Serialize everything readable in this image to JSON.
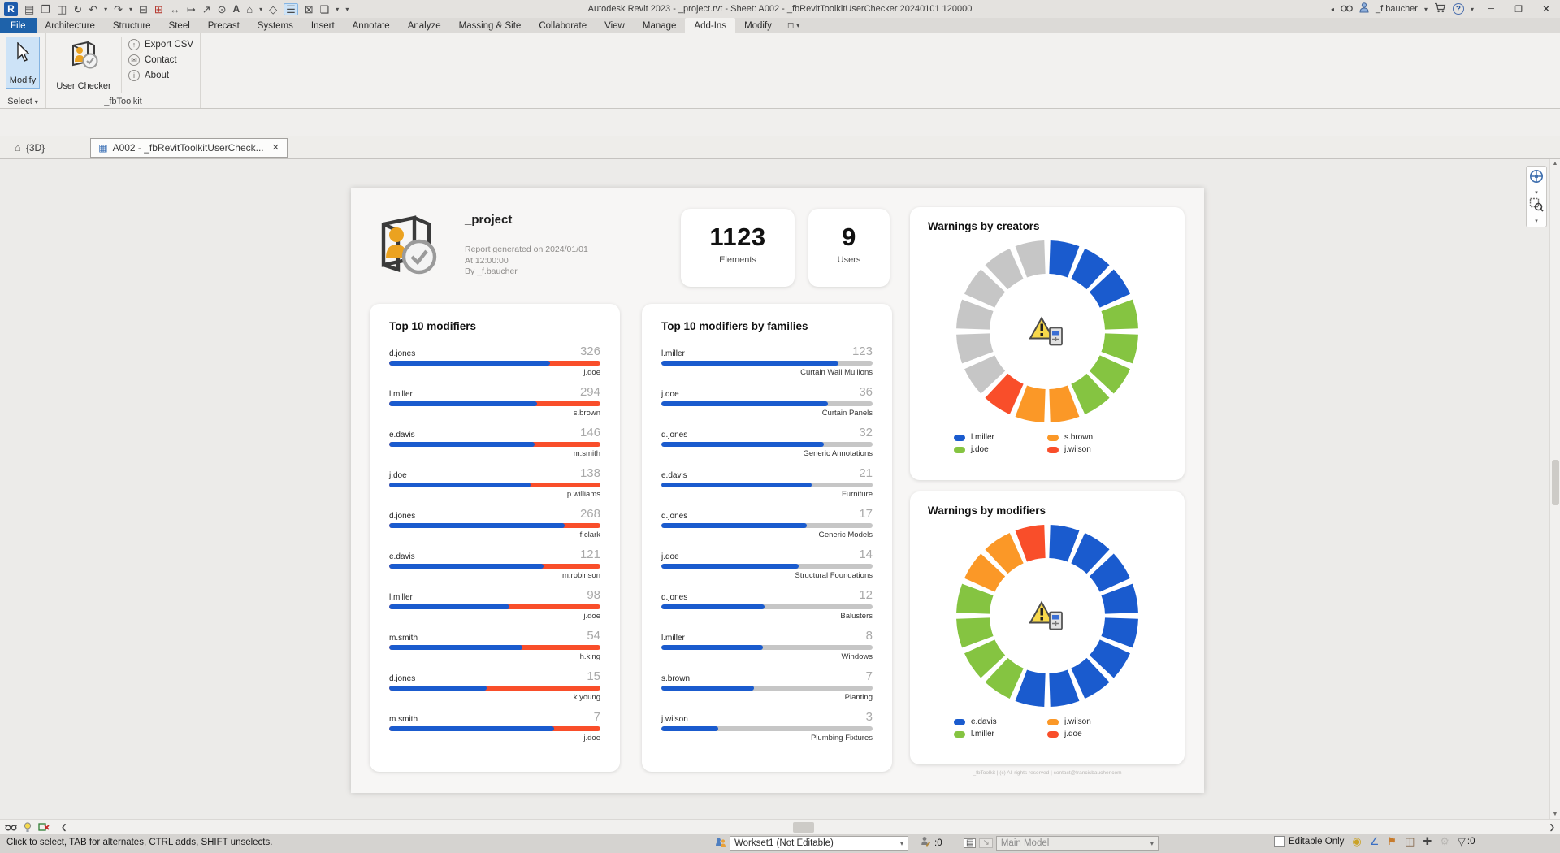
{
  "window": {
    "title": "Autodesk Revit 2023 - _project.rvt - Sheet: A002 - _fbRevitToolkitUserChecker 20240101 120000",
    "user": "_f.baucher",
    "qat_icons": [
      "revit-logo",
      "properties-icon",
      "open-icon",
      "save-icon",
      "sync-icon",
      "undo-icon",
      "undo-caret",
      "redo-icon",
      "redo-caret",
      "print-icon",
      "export-pdf-icon",
      "measure-icon",
      "dimension-icon",
      "scale-icon",
      "tag-icon",
      "text-icon",
      "home-3d-icon",
      "home-caret",
      "section-icon",
      "thin-lines-icon",
      "close-hidden-icon",
      "switch-windows-icon",
      "switch-caret",
      "customize-caret"
    ]
  },
  "ribbon": {
    "tabs": [
      "File",
      "Architecture",
      "Structure",
      "Steel",
      "Precast",
      "Systems",
      "Insert",
      "Annotate",
      "Analyze",
      "Massing & Site",
      "Collaborate",
      "View",
      "Manage",
      "Add-Ins",
      "Modify"
    ],
    "active_tab": "Add-Ins",
    "modify_label": "Modify",
    "select_label": "Select",
    "user_checker_label": "User Checker",
    "menu_items": [
      "Export CSV",
      "Contact",
      "About"
    ],
    "panel_label": "_fbToolkit"
  },
  "view_tabs": {
    "tab_3d": "{3D}",
    "active": "A002 - _fbRevitToolkitUserCheck..."
  },
  "sheet": {
    "project_name": "_project",
    "report_line1": "Report generated on 2024/01/01",
    "report_line2": "At 12:00:00",
    "report_line3": "By _f.baucher",
    "stats": [
      {
        "value": "1123",
        "label": "Elements"
      },
      {
        "value": "9",
        "label": "Users"
      }
    ],
    "footer": "_fbToolkit | (c) All rights reserved | contact@francisbaucher.com"
  },
  "palette": {
    "blue": "#1a5bce",
    "red": "#f94e2a",
    "green": "#85c441",
    "orange": "#fb9827",
    "gray": "#c6c6c6"
  },
  "chart_data": [
    {
      "type": "bar",
      "title": "Top 10 modifiers",
      "primary_color": "#1a5bce",
      "secondary_color": "#f94e2a",
      "rows": [
        {
          "name": "d.jones",
          "value": 326,
          "second": "j.doe",
          "primary_pct": 76
        },
        {
          "name": "l.miller",
          "value": 294,
          "second": "s.brown",
          "primary_pct": 70
        },
        {
          "name": "e.davis",
          "value": 146,
          "second": "m.smith",
          "primary_pct": 69
        },
        {
          "name": "j.doe",
          "value": 138,
          "second": "p.williams",
          "primary_pct": 67
        },
        {
          "name": "d.jones",
          "value": 268,
          "second": "f.clark",
          "primary_pct": 83
        },
        {
          "name": "e.davis",
          "value": 121,
          "second": "m.robinson",
          "primary_pct": 73
        },
        {
          "name": "l.miller",
          "value": 98,
          "second": "j.doe",
          "primary_pct": 57
        },
        {
          "name": "m.smith",
          "value": 54,
          "second": "h.king",
          "primary_pct": 63
        },
        {
          "name": "d.jones",
          "value": 15,
          "second": "k.young",
          "primary_pct": 46
        },
        {
          "name": "m.smith",
          "value": 7,
          "second": "j.doe",
          "primary_pct": 78
        }
      ]
    },
    {
      "type": "bar",
      "title": "Top 10 modifiers by families",
      "primary_color": "#1a5bce",
      "secondary_color": "#c6c6c6",
      "rows": [
        {
          "name": "l.miller",
          "value": 123,
          "second": "Curtain Wall Mullions",
          "primary_pct": 84
        },
        {
          "name": "j.doe",
          "value": 36,
          "second": "Curtain Panels",
          "primary_pct": 79
        },
        {
          "name": "d.jones",
          "value": 32,
          "second": "Generic Annotations",
          "primary_pct": 77
        },
        {
          "name": "e.davis",
          "value": 21,
          "second": "Furniture",
          "primary_pct": 71
        },
        {
          "name": "d.jones",
          "value": 17,
          "second": "Generic Models",
          "primary_pct": 69
        },
        {
          "name": "j.doe",
          "value": 14,
          "second": "Structural Foundations",
          "primary_pct": 65
        },
        {
          "name": "d.jones",
          "value": 12,
          "second": "Balusters",
          "primary_pct": 49
        },
        {
          "name": "l.miller",
          "value": 8,
          "second": "Windows",
          "primary_pct": 48
        },
        {
          "name": "s.brown",
          "value": 7,
          "second": "Planting",
          "primary_pct": 44
        },
        {
          "name": "j.wilson",
          "value": 3,
          "second": "Plumbing Fixtures",
          "primary_pct": 27
        }
      ]
    },
    {
      "type": "donut",
      "title": "Warnings by creators",
      "total_segments": 16,
      "series": [
        {
          "label": "l.miller",
          "color": "#1a5bce",
          "segments": 3
        },
        {
          "label": "j.doe",
          "color": "#85c441",
          "segments": 4
        },
        {
          "label": "s.brown",
          "color": "#fb9827",
          "segments": 2
        },
        {
          "label": "j.wilson",
          "color": "#f94e2a",
          "segments": 1
        },
        {
          "label": "",
          "color": "#c6c6c6",
          "segments": 6
        }
      ],
      "legend": [
        {
          "label": "l.miller",
          "color": "#1a5bce"
        },
        {
          "label": "s.brown",
          "color": "#fb9827"
        },
        {
          "label": "j.doe",
          "color": "#85c441"
        },
        {
          "label": "j.wilson",
          "color": "#f94e2a"
        }
      ]
    },
    {
      "type": "donut",
      "title": "Warnings by modifiers",
      "total_segments": 16,
      "series": [
        {
          "label": "e.davis",
          "color": "#1a5bce",
          "segments": 9
        },
        {
          "label": "l.miller",
          "color": "#85c441",
          "segments": 4
        },
        {
          "label": "j.wilson",
          "color": "#fb9827",
          "segments": 2
        },
        {
          "label": "j.doe",
          "color": "#f94e2a",
          "segments": 1
        }
      ],
      "legend": [
        {
          "label": "e.davis",
          "color": "#1a5bce"
        },
        {
          "label": "j.wilson",
          "color": "#fb9827"
        },
        {
          "label": "l.miller",
          "color": "#85c441"
        },
        {
          "label": "j.doe",
          "color": "#f94e2a"
        }
      ]
    }
  ],
  "status_bar": {
    "hint": "Click to select, TAB for alternates, CTRL adds, SHIFT unselects.",
    "workset": "Workset1 (Not Editable)",
    "active_workset_count": ":0",
    "design_option": "Main Model",
    "editable_only": "Editable Only",
    "filter_count": ":0"
  }
}
